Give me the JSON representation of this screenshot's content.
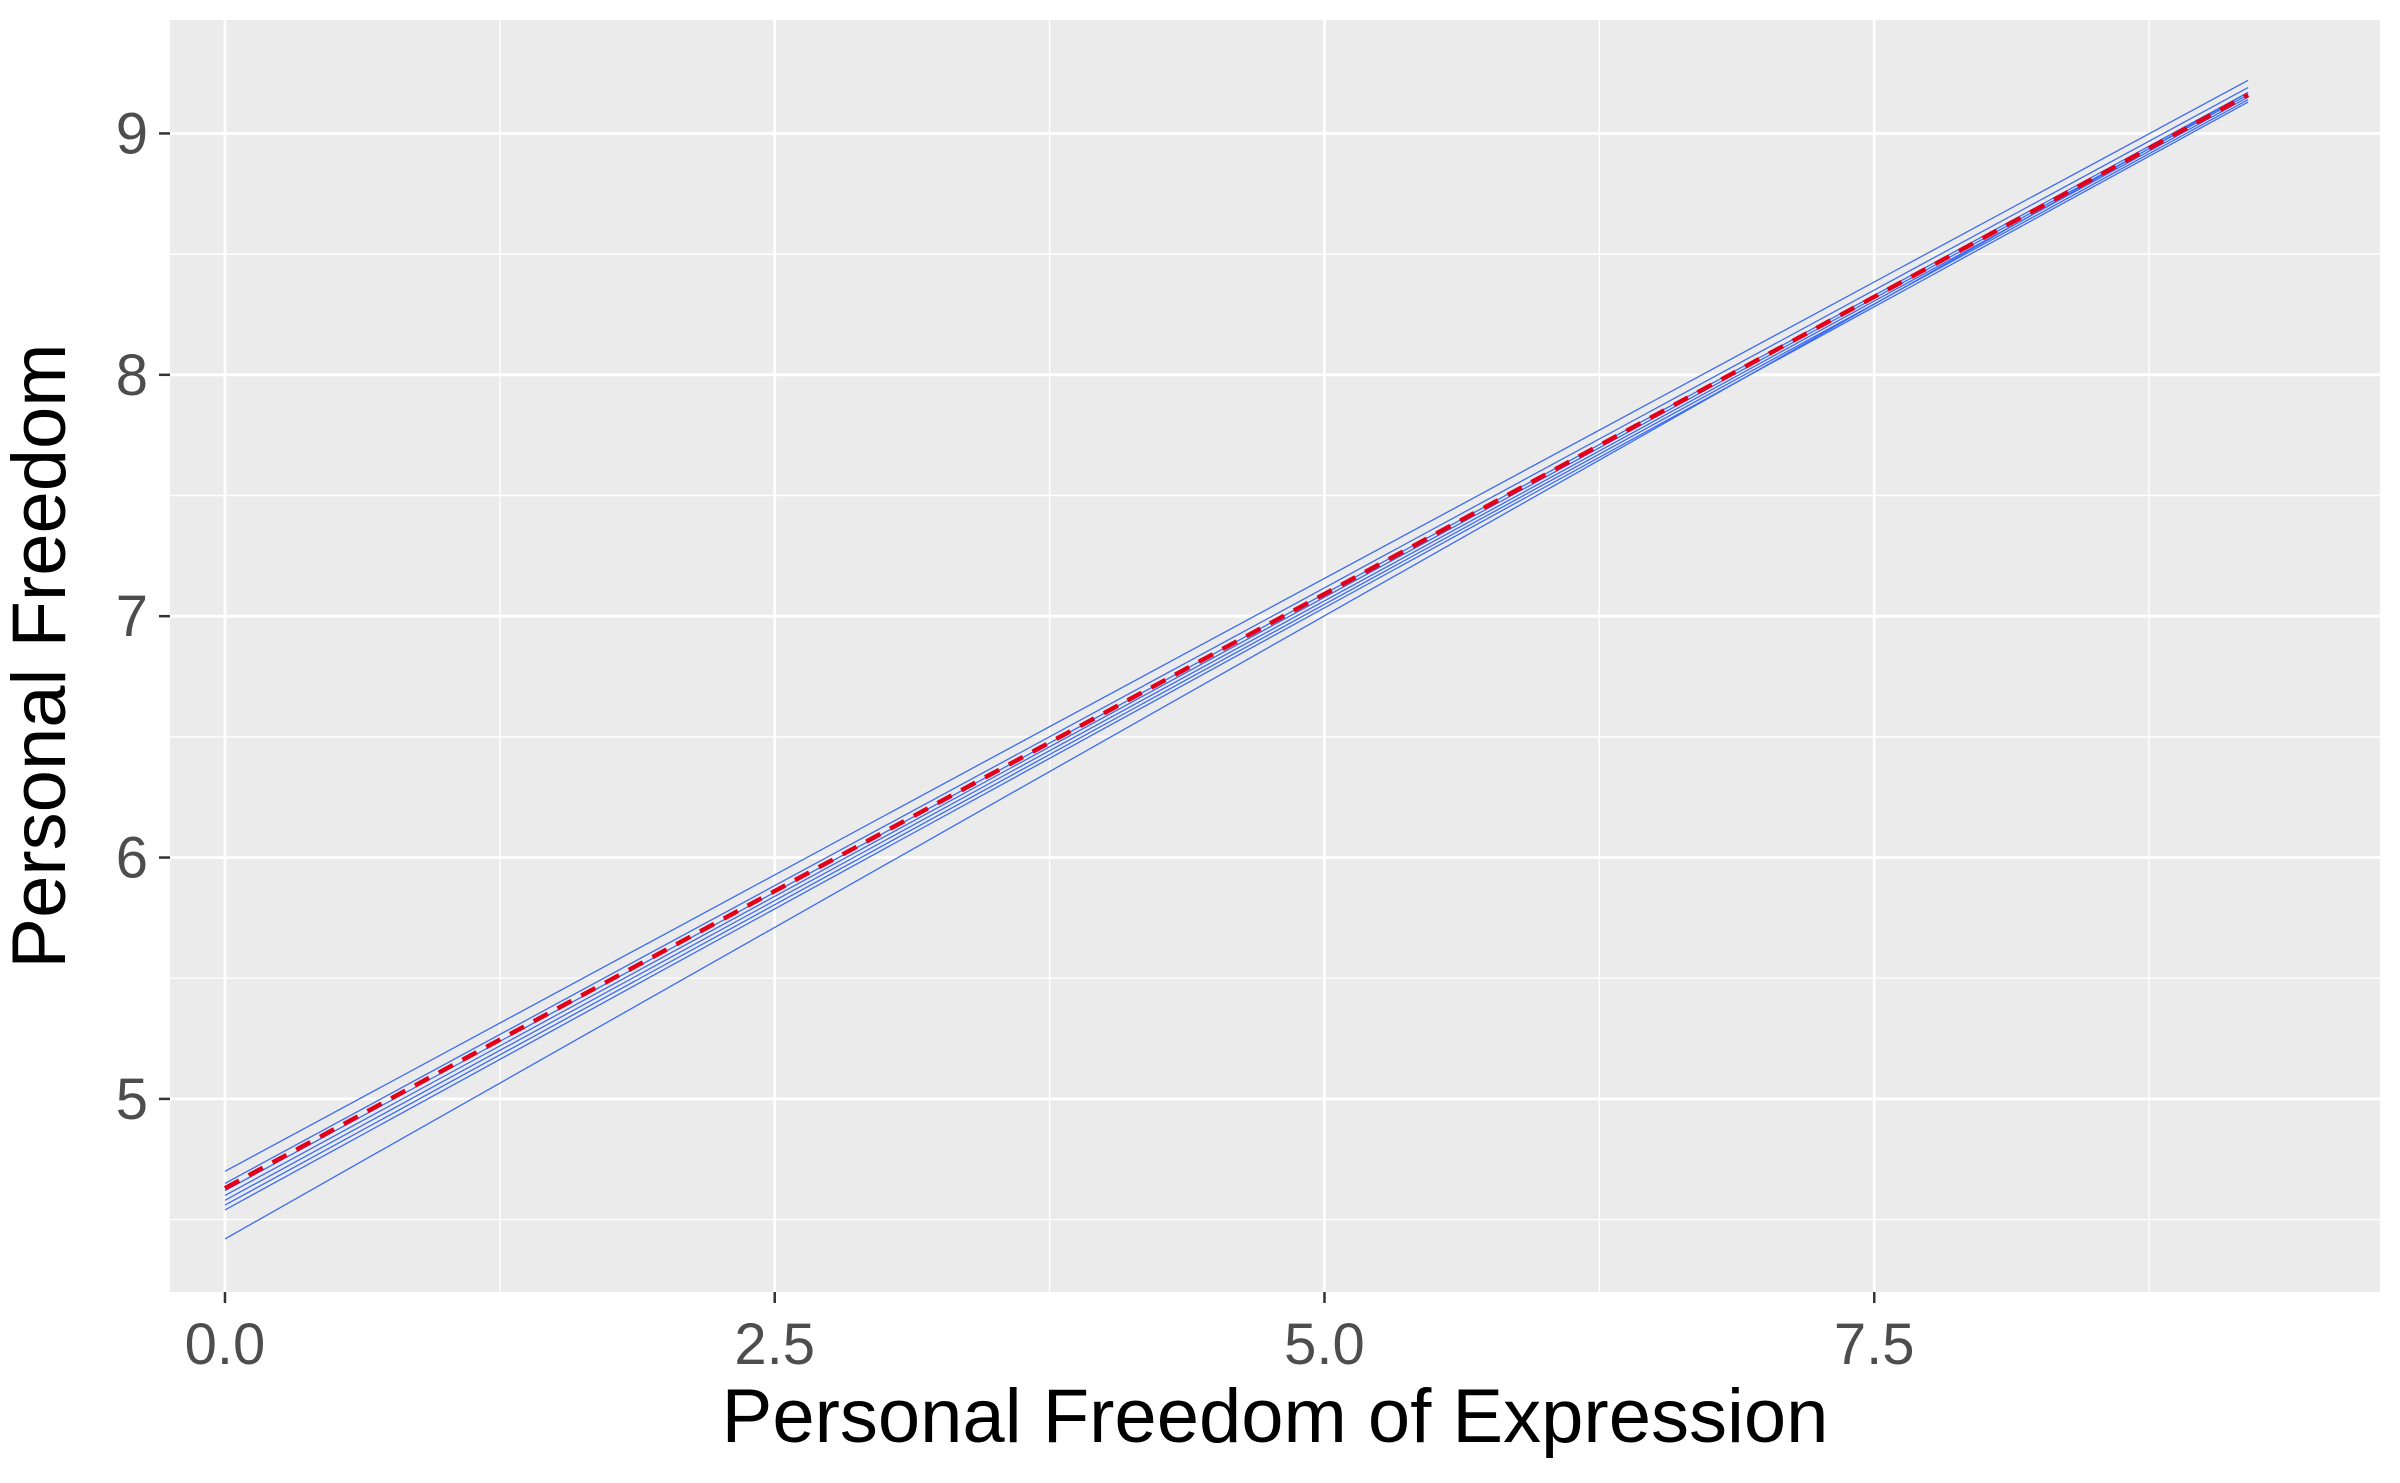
{
  "chart_data": {
    "type": "line",
    "title": "",
    "xlabel": "Personal Freedom of Expression",
    "ylabel": "Personal Freedom",
    "xlim": [
      -0.25,
      9.8
    ],
    "ylim": [
      4.2,
      9.47
    ],
    "x_ticks": [
      0.0,
      2.5,
      5.0,
      7.5
    ],
    "x_tick_labels": [
      "0.0",
      "2.5",
      "5.0",
      "7.5"
    ],
    "y_ticks": [
      5,
      6,
      7,
      8,
      9
    ],
    "y_tick_labels": [
      "5",
      "6",
      "7",
      "8",
      "9"
    ],
    "grid": true,
    "legend": "none",
    "series": [
      {
        "color": "#3b6cf2",
        "style": "solid",
        "x": [
          0,
          9.2
        ],
        "y": [
          4.7,
          9.22
        ]
      },
      {
        "color": "#3b6cf2",
        "style": "solid",
        "x": [
          0,
          9.2
        ],
        "y": [
          4.65,
          9.19
        ]
      },
      {
        "color": "#3b6cf2",
        "style": "solid",
        "x": [
          0,
          9.2
        ],
        "y": [
          4.62,
          9.17
        ]
      },
      {
        "color": "#3b6cf2",
        "style": "solid",
        "x": [
          0,
          9.2
        ],
        "y": [
          4.6,
          9.16
        ]
      },
      {
        "color": "#3b6cf2",
        "style": "solid",
        "x": [
          0,
          9.2
        ],
        "y": [
          4.58,
          9.15
        ]
      },
      {
        "color": "#3b6cf2",
        "style": "solid",
        "x": [
          0,
          9.2
        ],
        "y": [
          4.56,
          9.14
        ]
      },
      {
        "color": "#3b6cf2",
        "style": "solid",
        "x": [
          0,
          9.2
        ],
        "y": [
          4.54,
          9.13
        ]
      },
      {
        "color": "#3b6cf2",
        "style": "solid",
        "x": [
          0,
          9.2
        ],
        "y": [
          4.42,
          9.17
        ]
      },
      {
        "color": "#e3001b",
        "style": "dashed",
        "x": [
          0,
          9.2
        ],
        "y": [
          4.63,
          9.16
        ]
      }
    ],
    "colors": {
      "panel": "#ebebeb",
      "grid": "#ffffff",
      "series_line": "#3b6cf2",
      "mean_line": "#e3001b"
    }
  }
}
